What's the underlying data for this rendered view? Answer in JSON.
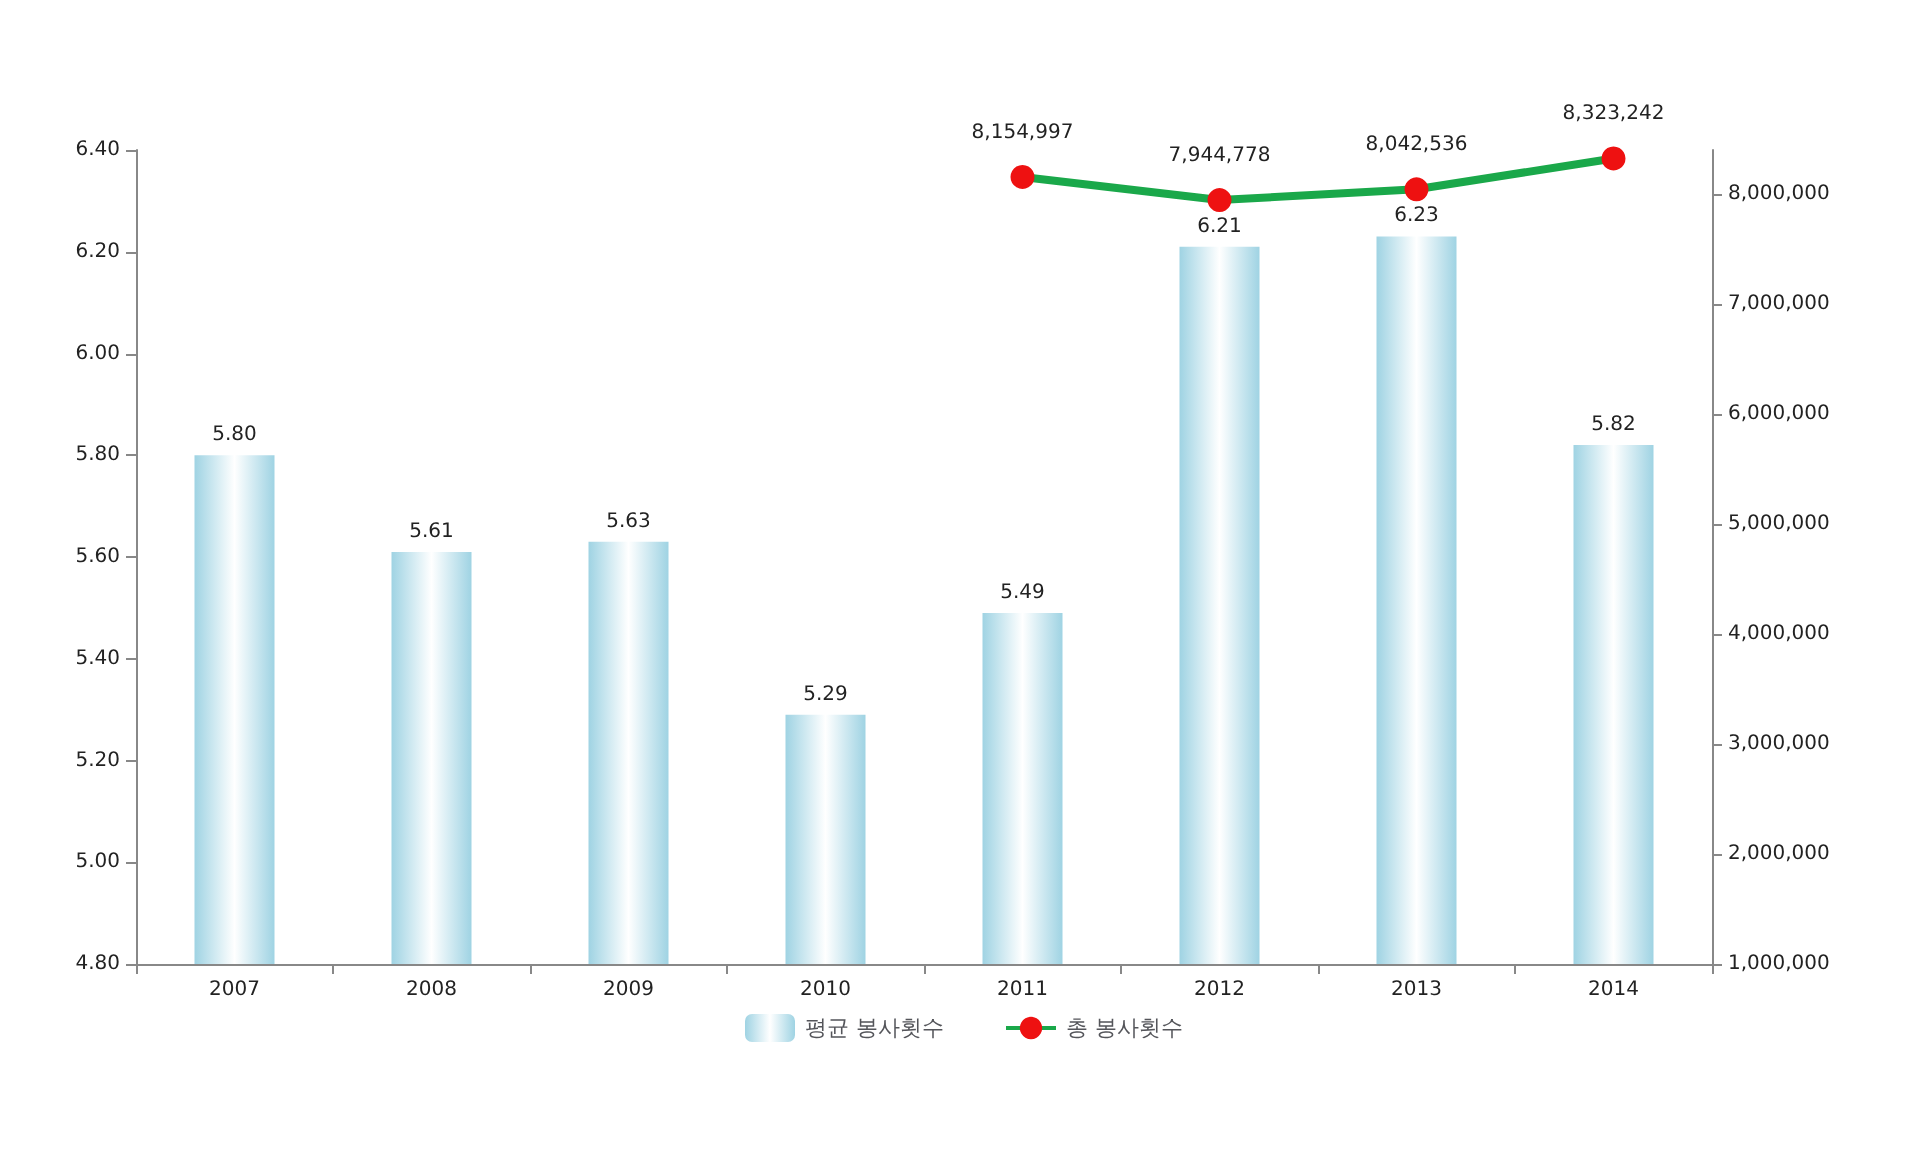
{
  "chart_data": {
    "type": "bar",
    "categories": [
      "2007",
      "2008",
      "2009",
      "2010",
      "2011",
      "2012",
      "2013",
      "2014"
    ],
    "series": [
      {
        "name": "평균 봉사횟수",
        "color": "#9fd3e3",
        "values": [
          5.8,
          5.61,
          5.63,
          5.29,
          5.49,
          6.21,
          6.23,
          5.82
        ],
        "value_labels": [
          "5.80",
          "5.61",
          "5.63",
          "5.29",
          "5.49",
          "6.21",
          "6.23",
          "5.82"
        ]
      },
      {
        "name": "총 봉사횟수",
        "type": "line",
        "axis": "y2",
        "color": "#1aa84a",
        "colors": [
          "#ee1111",
          "#ee1111",
          "#ee1111",
          "#ee1111",
          "#ee1111",
          "#ee1111",
          "#ee1111",
          "#ee1111"
        ],
        "values": [
          null,
          null,
          null,
          null,
          8154997,
          7944778,
          8042536,
          8323242
        ],
        "value_labels": [
          null,
          null,
          null,
          null,
          "8,154,997",
          "7,944,778",
          "8,042,536",
          "8,323,242"
        ]
      }
    ],
    "ylim": [
      4.8,
      6.4
    ],
    "yticks": [
      {
        "value": 4.8,
        "label": "4.80"
      },
      {
        "value": 5,
        "label": "5.00"
      },
      {
        "value": 5.2,
        "label": "5.20"
      },
      {
        "value": 5.4,
        "label": "5.40"
      },
      {
        "value": 5.6,
        "label": "5.60"
      },
      {
        "value": 5.8,
        "label": "5.80"
      },
      {
        "value": 6,
        "label": "6.00"
      },
      {
        "value": 6.2,
        "label": "6.20"
      },
      {
        "value": 6.4,
        "label": "6.40"
      }
    ],
    "y2lim": [
      1000000,
      8400000
    ],
    "y2ticks": [
      {
        "value": 1000000,
        "label": "1,000,000"
      },
      {
        "value": 2000000,
        "label": "2,000,000"
      },
      {
        "value": 3000000,
        "label": "3,000,000"
      },
      {
        "value": 4000000,
        "label": "4,000,000"
      },
      {
        "value": 5000000,
        "label": "5,000,000"
      },
      {
        "value": 6000000,
        "label": "6,000,000"
      },
      {
        "value": 7000000,
        "label": "7,000,000"
      },
      {
        "value": 8000000,
        "label": "8,000,000"
      }
    ],
    "grid": false,
    "legend": "bottom",
    "marker": "circle",
    "line_style": "solid"
  }
}
